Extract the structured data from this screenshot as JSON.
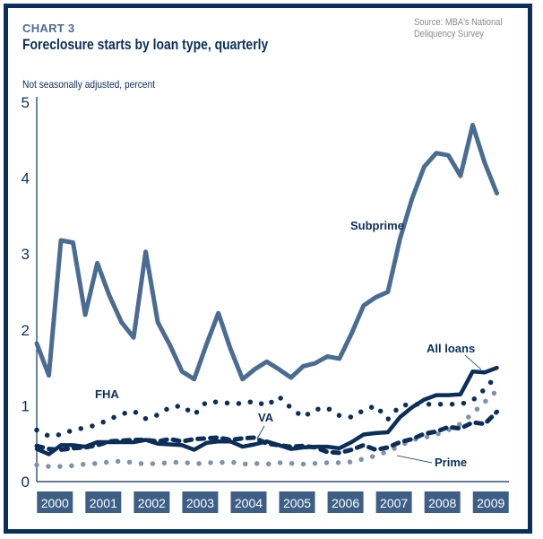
{
  "header": {
    "kicker": "CHART 3",
    "title": "Foreclosure starts by loan type, quarterly",
    "source_line1": "Source: MBA's National",
    "source_line2": "Deliquency Survey",
    "subtitle": "Not seasonally adjusted, percent"
  },
  "colors": {
    "frame": "#0b2f5a",
    "dark": "#0b2f5a",
    "mid": "#4a6c92",
    "light": "#7d93ad",
    "year_box": "#3d5f86"
  },
  "chart_data": {
    "type": "line",
    "title": "Foreclosure starts by loan type, quarterly",
    "subtitle": "Not seasonally adjusted, percent",
    "xlabel": "",
    "ylabel": "Not seasonally adjusted, percent",
    "ylim": [
      0,
      5
    ],
    "yticks": [
      "0",
      "1",
      "2",
      "3",
      "4",
      "5"
    ],
    "grid": false,
    "legend": "inline labels",
    "categories": [
      "2000",
      "2001",
      "2002",
      "2003",
      "2004",
      "2005",
      "2006",
      "2007",
      "2008",
      "2009"
    ],
    "x_unit": "quarter (2000 Q1 to 2009 Q3)",
    "series": [
      {
        "name": "Subprime",
        "style": "solid-mid",
        "values": [
          1.82,
          1.4,
          3.18,
          3.15,
          2.2,
          2.88,
          2.45,
          2.1,
          1.9,
          3.03,
          2.1,
          1.8,
          1.45,
          1.35,
          1.8,
          2.22,
          1.75,
          1.35,
          1.48,
          1.58,
          1.48,
          1.37,
          1.52,
          1.56,
          1.65,
          1.62,
          1.95,
          2.32,
          2.43,
          2.5,
          3.2,
          3.73,
          4.15,
          4.33,
          4.3,
          4.03,
          4.7,
          4.2,
          3.8
        ]
      },
      {
        "name": "All loans",
        "style": "solid-dark",
        "values": [
          0.43,
          0.36,
          0.48,
          0.48,
          0.46,
          0.52,
          0.52,
          0.52,
          0.52,
          0.55,
          0.5,
          0.49,
          0.48,
          0.42,
          0.51,
          0.53,
          0.53,
          0.46,
          0.49,
          0.53,
          0.48,
          0.43,
          0.45,
          0.46,
          0.46,
          0.44,
          0.52,
          0.62,
          0.64,
          0.65,
          0.85,
          0.98,
          1.08,
          1.14,
          1.14,
          1.15,
          1.45,
          1.44,
          1.5
        ]
      },
      {
        "name": "FHA",
        "style": "dotted-dark",
        "values": [
          0.68,
          0.6,
          0.62,
          0.68,
          0.71,
          0.75,
          0.82,
          0.89,
          0.93,
          0.83,
          0.88,
          0.98,
          1.0,
          0.88,
          1.05,
          1.05,
          1.03,
          1.03,
          1.06,
          1.0,
          1.12,
          0.97,
          0.85,
          0.95,
          0.97,
          0.87,
          0.85,
          0.94,
          1.0,
          0.82,
          1.0,
          1.02,
          1.02,
          1.02,
          1.02,
          1.02,
          1.07,
          1.22,
          1.4
        ]
      },
      {
        "name": "VA",
        "style": "dashed-dark",
        "values": [
          0.47,
          0.43,
          0.42,
          0.44,
          0.45,
          0.48,
          0.53,
          0.54,
          0.55,
          0.55,
          0.53,
          0.56,
          0.53,
          0.56,
          0.57,
          0.58,
          0.55,
          0.57,
          0.58,
          0.5,
          0.48,
          0.46,
          0.47,
          0.45,
          0.39,
          0.38,
          0.42,
          0.48,
          0.42,
          0.45,
          0.52,
          0.56,
          0.63,
          0.66,
          0.72,
          0.7,
          0.78,
          0.76,
          0.92
        ]
      },
      {
        "name": "Prime",
        "style": "dotted-light",
        "values": [
          0.22,
          0.2,
          0.2,
          0.21,
          0.23,
          0.24,
          0.26,
          0.27,
          0.25,
          0.23,
          0.24,
          0.25,
          0.26,
          0.23,
          0.25,
          0.25,
          0.26,
          0.23,
          0.24,
          0.23,
          0.25,
          0.24,
          0.23,
          0.24,
          0.25,
          0.25,
          0.26,
          0.3,
          0.34,
          0.4,
          0.47,
          0.55,
          0.58,
          0.62,
          0.68,
          0.76,
          0.9,
          1.05,
          1.2
        ]
      }
    ],
    "annotations": [
      {
        "text": "Subprime",
        "series": "Subprime"
      },
      {
        "text": "All loans",
        "series": "All loans"
      },
      {
        "text": "FHA",
        "series": "FHA"
      },
      {
        "text": "VA",
        "series": "VA"
      },
      {
        "text": "Prime",
        "series": "Prime"
      }
    ]
  }
}
